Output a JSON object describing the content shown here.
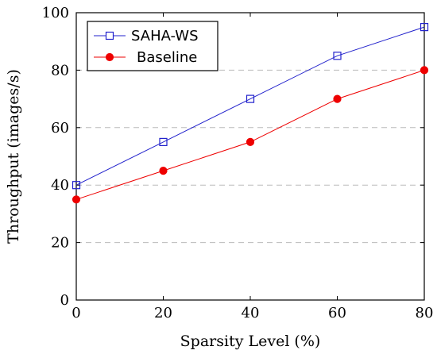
{
  "chart_data": {
    "type": "line",
    "xlabel": "Sparsity Level (%)",
    "ylabel": "Throughput (images/s)",
    "x": [
      0,
      20,
      40,
      60,
      80
    ],
    "xticks": [
      "0",
      "20",
      "40",
      "60",
      "80"
    ],
    "yticks": [
      "0",
      "20",
      "40",
      "60",
      "80",
      "100"
    ],
    "xlim": [
      0,
      80
    ],
    "ylim": [
      0,
      100
    ],
    "grid": "horizontal-dashed",
    "legend_position": "top-left",
    "series": [
      {
        "name": "SAHA-WS",
        "values": [
          40,
          55,
          70,
          85,
          95
        ],
        "color": "#2222cc",
        "marker": "open-square"
      },
      {
        "name": "Baseline",
        "values": [
          35,
          45,
          55,
          70,
          80
        ],
        "color": "#ee0000",
        "marker": "filled-circle"
      }
    ]
  }
}
